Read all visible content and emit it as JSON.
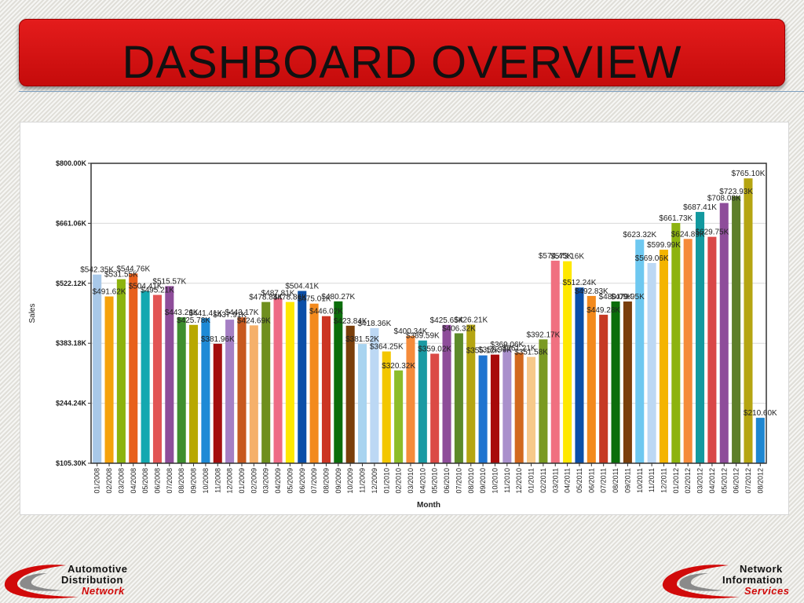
{
  "page": {
    "title": "DASHBOARD OVERVIEW"
  },
  "logos": {
    "left": {
      "line1": "Automotive",
      "line2": "Distribution",
      "line3": "Network"
    },
    "right": {
      "line1": "Network",
      "line2": "Information",
      "line3": "Services"
    }
  },
  "chart_data": {
    "type": "bar",
    "xlabel": "Month",
    "ylabel": "Sales",
    "ylim": [
      105.3,
      800.0
    ],
    "yticks": [
      "$105.30K",
      "$244.24K",
      "$383.18K",
      "$522.12K",
      "$661.06K",
      "$800.00K"
    ],
    "ytick_values": [
      105.3,
      244.24,
      383.18,
      522.12,
      661.06,
      800.0
    ],
    "grid": true,
    "categories": [
      "01/2008",
      "02/2008",
      "03/2008",
      "04/2008",
      "05/2008",
      "06/2008",
      "07/2008",
      "08/2008",
      "09/2008",
      "10/2008",
      "11/2008",
      "12/2008",
      "01/2009",
      "02/2009",
      "03/2009",
      "04/2009",
      "05/2009",
      "06/2009",
      "07/2009",
      "08/2009",
      "09/2009",
      "10/2009",
      "11/2009",
      "12/2009",
      "01/2010",
      "02/2010",
      "03/2010",
      "04/2010",
      "05/2010",
      "06/2010",
      "07/2010",
      "08/2010",
      "09/2010",
      "10/2010",
      "11/2010",
      "12/2010",
      "01/2011",
      "02/2011",
      "03/2011",
      "04/2011",
      "05/2011",
      "06/2011",
      "07/2011",
      "08/2011",
      "09/2011",
      "10/2011",
      "11/2011",
      "12/2011",
      "01/2012",
      "02/2012",
      "03/2012",
      "04/2012",
      "05/2012",
      "06/2012",
      "07/2012",
      "08/2012"
    ],
    "values": [
      542.35,
      491.62,
      531.55,
      544.76,
      504.41,
      495.21,
      515.57,
      443.26,
      425.78,
      441.41,
      381.96,
      437.91,
      443.17,
      424.69,
      478.84,
      487.81,
      478.86,
      504.41,
      475.01,
      446.02,
      480.27,
      423.84,
      381.52,
      418.36,
      364.25,
      320.32,
      400.34,
      389.59,
      359.02,
      425.65,
      406.32,
      426.21,
      355.12,
      356.96,
      369.06,
      361.21,
      351.58,
      392.17,
      574.45,
      573.16,
      512.24,
      492.83,
      449.28,
      480.09,
      479.95,
      623.32,
      569.06,
      599.99,
      661.73,
      624.89,
      687.41,
      629.75,
      708.08,
      723.93,
      765.1,
      210.6
    ],
    "data_labels": [
      "$542.35K",
      "$491.62K",
      "$531.55K",
      "$544.76K",
      "$504.41K",
      "$495.21K",
      "$515.57K",
      "$443.26K",
      "$425.78K",
      "$441.41K",
      "$381.96K",
      "$437.91K",
      "$443.17K",
      "$424.69K",
      "$478.84K",
      "$487.81K",
      "$478.86K",
      "$504.41K",
      "$475.01K",
      "$446.02K",
      "$480.27K",
      "$423.84K",
      "$381.52K",
      "$418.36K",
      "$364.25K",
      "$320.32K",
      "$400.34K",
      "$389.59K",
      "$359.02K",
      "$425.65K",
      "$406.32K",
      "$426.21K",
      "$355.12K",
      "$356.96K",
      "$369.06K",
      "$361.21K",
      "$351.58K",
      "$392.17K",
      "$574.45K",
      "$573.16K",
      "$512.24K",
      "$492.83K",
      "$449.28K",
      "$480.09K",
      "$479.95K",
      "$623.32K",
      "$569.06K",
      "$599.99K",
      "$661.73K",
      "$624.89K",
      "$687.41K",
      "$629.75K",
      "$708.08K",
      "$723.93K",
      "$765.10K",
      "$210.60K"
    ],
    "colors": [
      "#a8c8e8",
      "#f5a20c",
      "#8db30f",
      "#e8601c",
      "#13a8b0",
      "#e25555",
      "#8e4d9a",
      "#3f8f2f",
      "#b8a800",
      "#1e8ad6",
      "#a40e0e",
      "#a57fc4",
      "#c7591f",
      "#f5b06a",
      "#6f8f1e",
      "#ee6b85",
      "#ffe800",
      "#0b4fa8",
      "#f38a1d",
      "#cc3523",
      "#0b6e0b",
      "#7a3f0b",
      "#a8d4f0",
      "#bcd8f4",
      "#f3c700",
      "#8dbd2a",
      "#f58b3a",
      "#1a9aa3",
      "#db4a45",
      "#8e4d9a",
      "#5d8a2a",
      "#b5a512",
      "#1e74d0",
      "#a80a0a",
      "#a990cc",
      "#d2691e",
      "#f7c98a",
      "#7a9a22",
      "#f07080",
      "#ffe800",
      "#0b4fa8",
      "#f38a1d",
      "#c63a24",
      "#0b6e0b",
      "#7a3f0b",
      "#6ec8f0",
      "#bcd8f4",
      "#f4b400",
      "#8db30f",
      "#f58b3a",
      "#13999f",
      "#d94848",
      "#8e4d9a",
      "#5e7f2a",
      "#b5a512",
      "#1e86d0"
    ]
  }
}
